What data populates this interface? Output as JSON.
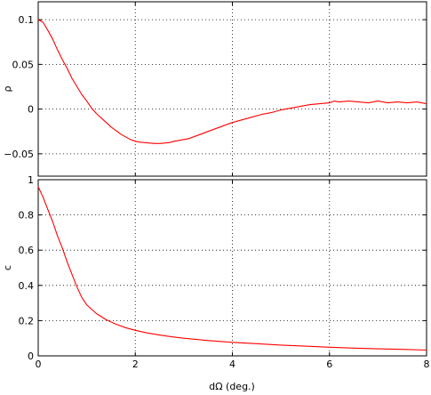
{
  "chart_data": [
    {
      "type": "line",
      "ylabel": "ρ",
      "xlim": [
        0,
        8
      ],
      "ylim": [
        -0.075,
        0.12
      ],
      "xticks": [
        0,
        2,
        4,
        6,
        8
      ],
      "yticks": [
        -0.05,
        0,
        0.05,
        0.1
      ],
      "ytick_labels": [
        "−0.05",
        "0",
        "0.05",
        "0.1"
      ],
      "grid": true,
      "series": [
        {
          "color": "#ff0000",
          "x": [
            0,
            0.1,
            0.2,
            0.3,
            0.4,
            0.5,
            0.6,
            0.7,
            0.8,
            0.9,
            1.0,
            1.1,
            1.2,
            1.3,
            1.4,
            1.5,
            1.6,
            1.7,
            1.8,
            1.9,
            2.0,
            2.1,
            2.2,
            2.3,
            2.4,
            2.5,
            2.6,
            2.7,
            2.8,
            2.9,
            3.0,
            3.1,
            3.2,
            3.3,
            3.4,
            3.5,
            3.6,
            3.7,
            3.8,
            3.9,
            4.0,
            4.2,
            4.4,
            4.6,
            4.8,
            5.0,
            5.2,
            5.4,
            5.6,
            5.8,
            6.0,
            6.1,
            6.2,
            6.4,
            6.6,
            6.8,
            7.0,
            7.2,
            7.4,
            7.6,
            7.8,
            8.0
          ],
          "y": [
            0.1,
            0.097,
            0.088,
            0.078,
            0.066,
            0.055,
            0.045,
            0.034,
            0.025,
            0.016,
            0.009,
            0.001,
            -0.005,
            -0.01,
            -0.015,
            -0.02,
            -0.024,
            -0.028,
            -0.031,
            -0.034,
            -0.036,
            -0.037,
            -0.0375,
            -0.038,
            -0.0385,
            -0.0385,
            -0.038,
            -0.0375,
            -0.036,
            -0.035,
            -0.034,
            -0.033,
            -0.031,
            -0.029,
            -0.027,
            -0.025,
            -0.023,
            -0.021,
            -0.019,
            -0.017,
            -0.015,
            -0.012,
            -0.009,
            -0.006,
            -0.004,
            -0.001,
            0.001,
            0.003,
            0.005,
            0.006,
            0.007,
            0.009,
            0.008,
            0.009,
            0.008,
            0.007,
            0.009,
            0.007,
            0.008,
            0.007,
            0.008,
            0.006
          ]
        }
      ]
    },
    {
      "type": "line",
      "ylabel": "c",
      "xlabel": "dΩ (deg.)",
      "xlim": [
        0,
        8
      ],
      "ylim": [
        0,
        1
      ],
      "xticks": [
        0,
        2,
        4,
        6,
        8
      ],
      "xtick_labels": [
        "0",
        "2",
        "4",
        "6",
        "8"
      ],
      "yticks": [
        0,
        0.2,
        0.4,
        0.6,
        0.8,
        1
      ],
      "ytick_labels": [
        "0",
        "0.2",
        "0.4",
        "0.6",
        "0.8",
        "1"
      ],
      "grid": true,
      "series": [
        {
          "color": "#ff0000",
          "x": [
            0,
            0.1,
            0.2,
            0.3,
            0.4,
            0.5,
            0.6,
            0.7,
            0.8,
            0.9,
            1.0,
            1.2,
            1.4,
            1.6,
            1.8,
            2.0,
            2.25,
            2.5,
            2.75,
            3.0,
            3.5,
            4.0,
            4.5,
            5.0,
            5.5,
            6.0,
            6.5,
            7.0,
            7.5,
            8.0
          ],
          "y": [
            0.96,
            0.9,
            0.83,
            0.76,
            0.68,
            0.61,
            0.53,
            0.46,
            0.39,
            0.33,
            0.29,
            0.24,
            0.205,
            0.18,
            0.16,
            0.145,
            0.13,
            0.118,
            0.108,
            0.1,
            0.087,
            0.077,
            0.069,
            0.061,
            0.055,
            0.049,
            0.044,
            0.04,
            0.037,
            0.033
          ]
        }
      ]
    }
  ]
}
